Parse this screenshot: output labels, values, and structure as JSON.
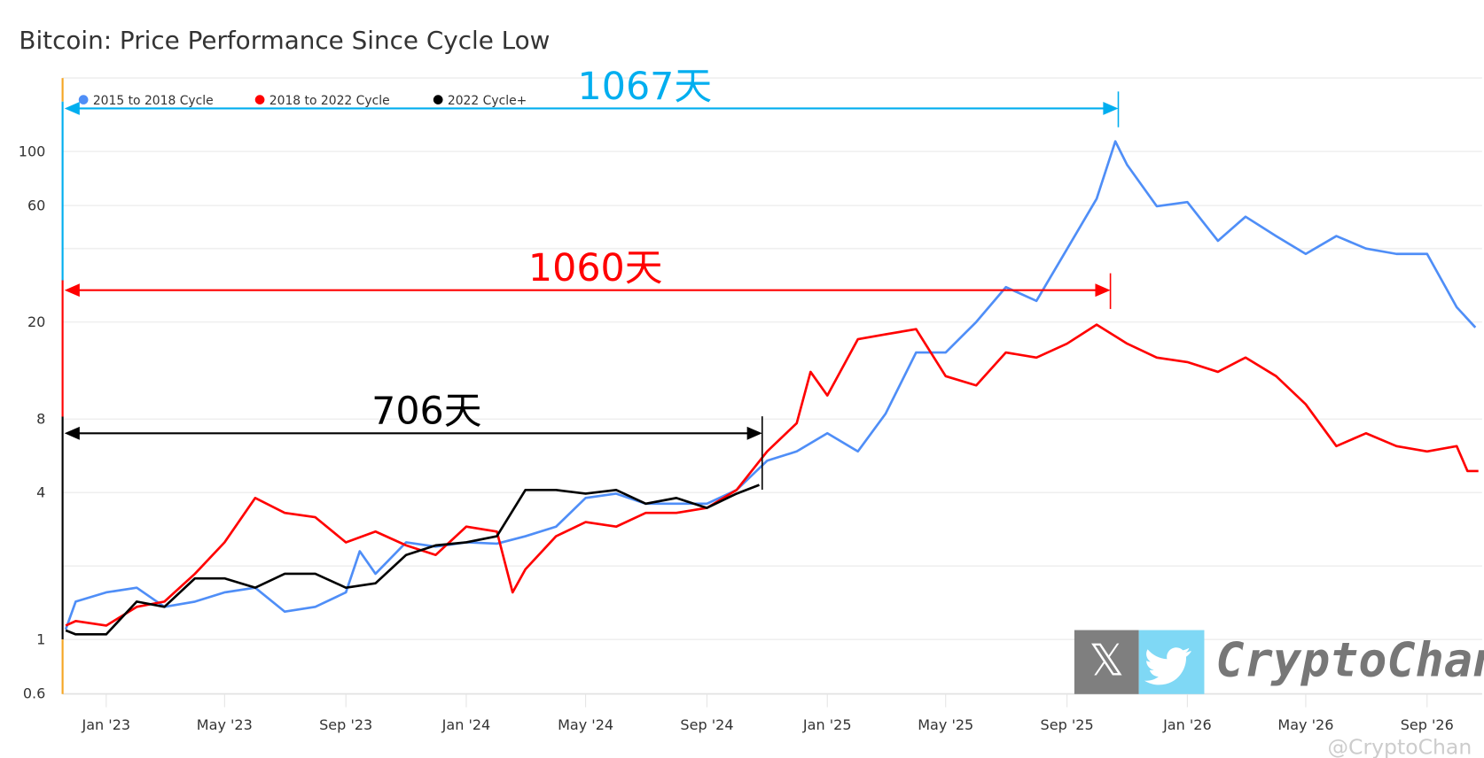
{
  "chart_data": {
    "type": "line",
    "title": "Bitcoin: Price Performance Since Cycle Low",
    "xlabel": "",
    "ylabel": "",
    "y_scale": "log",
    "ylim": [
      0.6,
      200
    ],
    "xlim": [
      "2022-11-21",
      "2026-10-23"
    ],
    "grid": true,
    "legend_placement": "top-left",
    "y_ticks": [
      "0.6",
      "1",
      "4",
      "8",
      "20",
      "60",
      "100"
    ],
    "x_ticks": [
      {
        "label": "Jan '23",
        "date": "2023-01-01"
      },
      {
        "label": "May '23",
        "date": "2023-05-01"
      },
      {
        "label": "Sep '23",
        "date": "2023-09-01"
      },
      {
        "label": "Jan '24",
        "date": "2024-01-01"
      },
      {
        "label": "May '24",
        "date": "2024-05-01"
      },
      {
        "label": "Sep '24",
        "date": "2024-09-01"
      },
      {
        "label": "Jan '25",
        "date": "2025-01-01"
      },
      {
        "label": "May '25",
        "date": "2025-05-01"
      },
      {
        "label": "Sep '25",
        "date": "2025-09-01"
      },
      {
        "label": "Jan '26",
        "date": "2026-01-01"
      },
      {
        "label": "May '26",
        "date": "2026-05-01"
      },
      {
        "label": "Sep '26",
        "date": "2026-09-01"
      }
    ],
    "series": [
      {
        "name": "2015 to 2018 Cycle",
        "color": "#4f8ef7",
        "points": [
          [
            "2022-11-21",
            1.1
          ],
          [
            "2022-12-01",
            1.43
          ],
          [
            "2023-01-01",
            1.56
          ],
          [
            "2023-02-01",
            1.63
          ],
          [
            "2023-03-01",
            1.36
          ],
          [
            "2023-04-01",
            1.43
          ],
          [
            "2023-05-01",
            1.56
          ],
          [
            "2023-06-01",
            1.63
          ],
          [
            "2023-07-01",
            1.3
          ],
          [
            "2023-08-01",
            1.36
          ],
          [
            "2023-09-01",
            1.56
          ],
          [
            "2023-09-15",
            2.3
          ],
          [
            "2023-10-01",
            1.86
          ],
          [
            "2023-11-01",
            2.5
          ],
          [
            "2023-12-01",
            2.4
          ],
          [
            "2024-01-01",
            2.5
          ],
          [
            "2024-02-01",
            2.47
          ],
          [
            "2024-03-01",
            2.65
          ],
          [
            "2024-04-01",
            2.9
          ],
          [
            "2024-05-01",
            3.8
          ],
          [
            "2024-06-01",
            3.96
          ],
          [
            "2024-07-01",
            3.6
          ],
          [
            "2024-08-01",
            3.6
          ],
          [
            "2024-09-01",
            3.6
          ],
          [
            "2024-10-01",
            4.1
          ],
          [
            "2024-11-01",
            5.4
          ],
          [
            "2024-12-01",
            5.9
          ],
          [
            "2025-01-01",
            7.0
          ],
          [
            "2025-02-01",
            5.9
          ],
          [
            "2025-03-01",
            8.4
          ],
          [
            "2025-04-01",
            15
          ],
          [
            "2025-05-01",
            15
          ],
          [
            "2025-06-01",
            20
          ],
          [
            "2025-07-01",
            27.8
          ],
          [
            "2025-08-01",
            24.4
          ],
          [
            "2025-09-01",
            39.8
          ],
          [
            "2025-10-01",
            64
          ],
          [
            "2025-10-20",
            110
          ],
          [
            "2025-11-01",
            88
          ],
          [
            "2025-12-01",
            59.6
          ],
          [
            "2026-01-01",
            62
          ],
          [
            "2026-02-01",
            43
          ],
          [
            "2026-03-01",
            54
          ],
          [
            "2026-04-01",
            45
          ],
          [
            "2026-05-01",
            38
          ],
          [
            "2026-06-01",
            45
          ],
          [
            "2026-07-01",
            40
          ],
          [
            "2026-08-01",
            38
          ],
          [
            "2026-09-01",
            38
          ],
          [
            "2026-10-01",
            23
          ],
          [
            "2026-10-20",
            19
          ]
        ]
      },
      {
        "name": "2018 to 2022 Cycle",
        "color": "#ff0000",
        "points": [
          [
            "2022-11-21",
            1.14
          ],
          [
            "2022-12-01",
            1.19
          ],
          [
            "2023-01-01",
            1.14
          ],
          [
            "2023-02-01",
            1.36
          ],
          [
            "2023-03-01",
            1.43
          ],
          [
            "2023-04-01",
            1.86
          ],
          [
            "2023-05-01",
            2.5
          ],
          [
            "2023-06-01",
            3.8
          ],
          [
            "2023-07-01",
            3.3
          ],
          [
            "2023-08-01",
            3.17
          ],
          [
            "2023-09-01",
            2.5
          ],
          [
            "2023-10-01",
            2.77
          ],
          [
            "2023-11-01",
            2.43
          ],
          [
            "2023-12-01",
            2.22
          ],
          [
            "2024-01-01",
            2.9
          ],
          [
            "2024-02-01",
            2.77
          ],
          [
            "2024-02-17",
            1.56
          ],
          [
            "2024-03-01",
            1.94
          ],
          [
            "2024-04-01",
            2.65
          ],
          [
            "2024-05-01",
            3.03
          ],
          [
            "2024-06-01",
            2.9
          ],
          [
            "2024-07-01",
            3.3
          ],
          [
            "2024-08-01",
            3.3
          ],
          [
            "2024-09-01",
            3.46
          ],
          [
            "2024-10-01",
            4.1
          ],
          [
            "2024-11-01",
            5.9
          ],
          [
            "2024-12-01",
            7.7
          ],
          [
            "2024-12-15",
            12.5
          ],
          [
            "2025-01-01",
            10
          ],
          [
            "2025-02-01",
            17
          ],
          [
            "2025-03-01",
            17.8
          ],
          [
            "2025-04-01",
            18.7
          ],
          [
            "2025-05-01",
            12
          ],
          [
            "2025-06-01",
            11
          ],
          [
            "2025-07-01",
            15
          ],
          [
            "2025-08-01",
            14.3
          ],
          [
            "2025-09-01",
            16.3
          ],
          [
            "2025-10-01",
            19.5
          ],
          [
            "2025-11-01",
            16.3
          ],
          [
            "2025-12-01",
            14.3
          ],
          [
            "2026-01-01",
            13.7
          ],
          [
            "2026-02-01",
            12.5
          ],
          [
            "2026-03-01",
            14.3
          ],
          [
            "2026-04-01",
            12
          ],
          [
            "2026-05-01",
            9.2
          ],
          [
            "2026-06-01",
            6.2
          ],
          [
            "2026-07-01",
            7
          ],
          [
            "2026-08-01",
            6.2
          ],
          [
            "2026-09-01",
            5.9
          ],
          [
            "2026-10-01",
            6.2
          ],
          [
            "2026-10-12",
            4.9
          ],
          [
            "2026-10-23",
            4.9
          ]
        ]
      },
      {
        "name": "2022 Cycle+",
        "color": "#000000",
        "points": [
          [
            "2022-11-21",
            1.09
          ],
          [
            "2022-12-01",
            1.05
          ],
          [
            "2023-01-01",
            1.05
          ],
          [
            "2023-02-01",
            1.43
          ],
          [
            "2023-03-01",
            1.36
          ],
          [
            "2023-04-01",
            1.78
          ],
          [
            "2023-05-01",
            1.78
          ],
          [
            "2023-06-01",
            1.63
          ],
          [
            "2023-07-01",
            1.86
          ],
          [
            "2023-08-01",
            1.86
          ],
          [
            "2023-09-01",
            1.63
          ],
          [
            "2023-10-01",
            1.7
          ],
          [
            "2023-11-01",
            2.22
          ],
          [
            "2023-12-01",
            2.43
          ],
          [
            "2024-01-01",
            2.5
          ],
          [
            "2024-02-01",
            2.65
          ],
          [
            "2024-03-01",
            4.1
          ],
          [
            "2024-04-01",
            4.1
          ],
          [
            "2024-05-01",
            3.96
          ],
          [
            "2024-06-01",
            4.1
          ],
          [
            "2024-07-01",
            3.6
          ],
          [
            "2024-08-01",
            3.8
          ],
          [
            "2024-09-01",
            3.46
          ],
          [
            "2024-10-01",
            3.96
          ],
          [
            "2024-10-24",
            4.3
          ]
        ]
      }
    ],
    "annotations": [
      {
        "text": "1067天",
        "color": "#00aeef",
        "from": "2022-11-21",
        "to": "2025-10-23",
        "value": 150
      },
      {
        "text": "1060天",
        "color": "#ff0000",
        "from": "2022-11-21",
        "to": "2025-10-15",
        "value": 27
      },
      {
        "text": "706天",
        "color": "#000000",
        "from": "2022-11-21",
        "to": "2024-10-27",
        "value": 7.0
      }
    ]
  },
  "watermark": {
    "brand": "CryptoChan",
    "handle": "@CryptoChan",
    "x_color": "#7f7f7f",
    "twitter_color": "#7fd8f5"
  }
}
